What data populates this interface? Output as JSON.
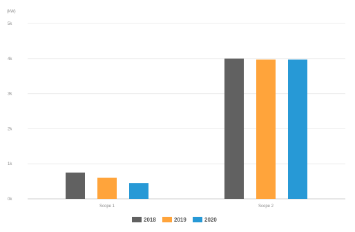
{
  "chart_data": {
    "type": "bar",
    "unit_label": "(kW)",
    "categories": [
      "Scope 1",
      "Scope 2"
    ],
    "series": [
      {
        "name": "2018",
        "color": "#616161",
        "values": [
          0.75,
          4.0
        ]
      },
      {
        "name": "2019",
        "color": "#FFA43B",
        "values": [
          0.6,
          3.97
        ]
      },
      {
        "name": "2020",
        "color": "#2799D6",
        "values": [
          0.45,
          3.97
        ]
      }
    ],
    "yticks": [
      {
        "value": 0,
        "label": "0k"
      },
      {
        "value": 1,
        "label": "1k"
      },
      {
        "value": 2,
        "label": "2k"
      },
      {
        "value": 3,
        "label": "3k"
      },
      {
        "value": 4,
        "label": "4k"
      },
      {
        "value": 5,
        "label": "5k"
      }
    ],
    "ylim": [
      0,
      5
    ],
    "grid": true,
    "legend_position": "bottom-center"
  }
}
